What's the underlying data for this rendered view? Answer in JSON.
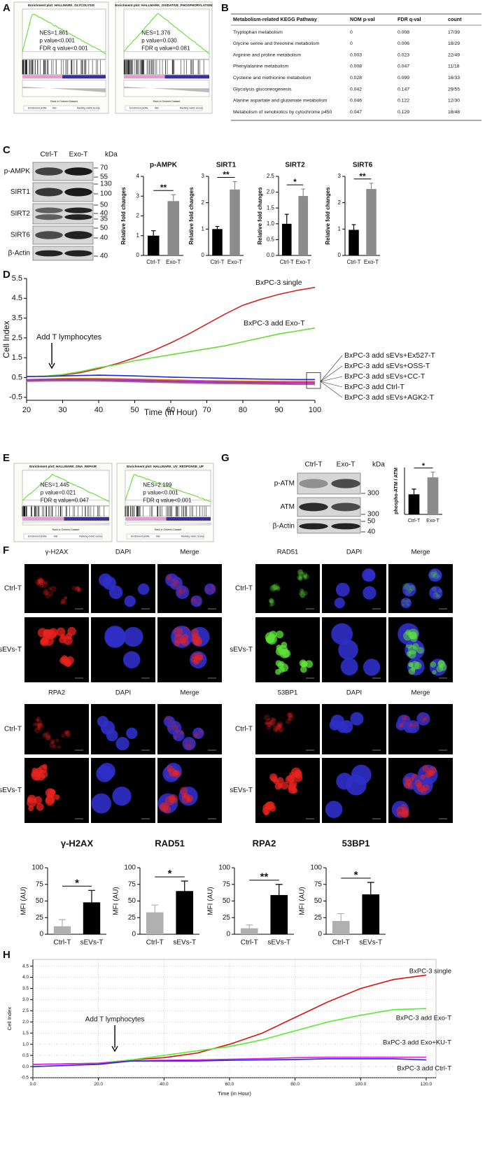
{
  "panel_labels": [
    "A",
    "B",
    "C",
    "D",
    "E",
    "F",
    "G",
    "H"
  ],
  "gsea": [
    {
      "title": "Enrichment plot: HALLMARK_GLYCOLYSIS",
      "stats": [
        "NES=1.861",
        "p value<0.001",
        "FDR q value<0.001"
      ]
    },
    {
      "title": "Enrichment plot: HALLMARK_OXIDATIVE_PHOSPHORYLATION",
      "stats": [
        "NES=1.376",
        "p value=0.030",
        "FDR q value=0.081"
      ]
    },
    {
      "title": "Enrichment plot: HALLMARK_DNA_REPAIR",
      "stats": [
        "NES=1.445",
        "p value=0.021",
        "FDR q value=0.047"
      ]
    },
    {
      "title": "Enrichment plot: HALLMARK_UV_RESPONSE_UP",
      "stats": [
        "NES=2.199",
        "p value<0.001",
        "FDR q value<0.001"
      ]
    }
  ],
  "gsea_legend": [
    "Enrichment profile",
    "Hits",
    "Ranking metric scores"
  ],
  "gsea_xlabel": "Rank in Ordered Dataset",
  "table": {
    "header": [
      "Metabolism-related KEGG Pathway",
      "NOM p-val",
      "FDR q-val",
      "count"
    ],
    "rows": [
      [
        "Tryptophan metabolism",
        "0",
        "0.008",
        "17/39"
      ],
      [
        "Glycine serine and threonine metabolism",
        "0",
        "0.006",
        "18/29"
      ],
      [
        "Arginine and proline metabolism",
        "0.003",
        "0.023",
        "22/49"
      ],
      [
        "Phenylalanine metabolism",
        "0.008",
        "0.047",
        "11/18"
      ],
      [
        "Cysteine and methionine metabolism",
        "0.028",
        "0.099",
        "16/33"
      ],
      [
        "Glycolysis gluconeogenesis",
        "0.042",
        "0.147",
        "29/55"
      ],
      [
        "Alanine aspartate and glutamate metabolism",
        "0.046",
        "0.122",
        "12/30"
      ],
      [
        "Metabolism of xenobiotics by cytochrome p450",
        "0.047",
        "0.129",
        "18/48"
      ]
    ]
  },
  "blot_c": {
    "lanes": [
      "Ctrl-T",
      "Exo-T"
    ],
    "unit": "kDa",
    "proteins": [
      "p-AMPK",
      "SIRT1",
      "SIRT2",
      "SIRT6",
      "β-Actin"
    ],
    "markers": [
      70,
      55,
      130,
      100,
      50,
      40,
      35,
      50,
      40,
      40
    ]
  },
  "blot_g": {
    "lanes": [
      "Ctrl-T",
      "Exo-T"
    ],
    "unit": "kDa",
    "proteins": [
      "p-ATM",
      "ATM",
      "β-Actin"
    ],
    "markers": [
      300,
      300,
      50,
      40
    ]
  },
  "microscopy": {
    "groups": [
      {
        "channels": [
          "γ-H2AX",
          "DAPI",
          "Merge"
        ],
        "color": "#e8231e"
      },
      {
        "channels": [
          "RAD51",
          "DAPI",
          "Merge"
        ],
        "color": "#5ee23a"
      },
      {
        "channels": [
          "RPA2",
          "DAPI",
          "Merge"
        ],
        "color": "#e8231e"
      },
      {
        "channels": [
          "53BP1",
          "DAPI",
          "Merge"
        ],
        "color": "#e8231e"
      }
    ],
    "rows": [
      "Ctrl-T",
      "sEVs-T"
    ]
  },
  "chart_data": [
    {
      "type": "bar",
      "title": "p-AMPK",
      "ylabel": "Relative fold changes",
      "categories": [
        "Ctrl-T",
        "Exo-T"
      ],
      "values": [
        1,
        2.75
      ],
      "errors": [
        0.25,
        0.32
      ],
      "colors": [
        "#000000",
        "#8c8c8c"
      ],
      "significance": "**",
      "ylim": [
        0,
        4
      ],
      "yticks": [
        0,
        1,
        2,
        3,
        4
      ]
    },
    {
      "type": "bar",
      "title": "SIRT1",
      "ylabel": "Relative fold changes",
      "categories": [
        "Ctrl-T",
        "Exo-T"
      ],
      "values": [
        1,
        2.5
      ],
      "errors": [
        0.1,
        0.3
      ],
      "colors": [
        "#000000",
        "#8c8c8c"
      ],
      "significance": "**",
      "ylim": [
        0,
        3
      ],
      "yticks": [
        0,
        1,
        2,
        3
      ]
    },
    {
      "type": "bar",
      "title": "SIRT2",
      "ylabel": "Relative fold changes",
      "categories": [
        "Ctrl-T",
        "Exo-T"
      ],
      "values": [
        1,
        1.88
      ],
      "errors": [
        0.3,
        0.22
      ],
      "colors": [
        "#000000",
        "#8c8c8c"
      ],
      "significance": "*",
      "ylim": [
        0,
        2.5
      ],
      "yticks": [
        {
          "value": 0,
          "label": "0.0"
        },
        0.5,
        {
          "value": 1,
          "label": "1.0"
        },
        1.5,
        {
          "value": 2,
          "label": "2.0"
        },
        2.5
      ]
    },
    {
      "type": "bar",
      "title": "SIRT6",
      "ylabel": "Relative fold changes",
      "categories": [
        "Ctrl-T",
        "Exo-T"
      ],
      "values": [
        0.97,
        2.52
      ],
      "errors": [
        0.2,
        0.22
      ],
      "colors": [
        "#000000",
        "#8c8c8c"
      ],
      "significance": "**",
      "ylim": [
        0,
        3
      ],
      "yticks": [
        0,
        1,
        2,
        3
      ]
    },
    {
      "type": "line",
      "ylabel": "Cell Index",
      "xlabel": "Time (in Hour)",
      "x": [
        20,
        25,
        30,
        35,
        40,
        45,
        50,
        55,
        60,
        65,
        70,
        75,
        80,
        85,
        90,
        95,
        100
      ],
      "xlim": [
        20,
        100
      ],
      "xticks": [
        20,
        30,
        40,
        50,
        60,
        70,
        80,
        90,
        100
      ],
      "ylim": [
        -0.65,
        5.5
      ],
      "yticks": [
        -0.5,
        0.5,
        1.5,
        2.5,
        3.5,
        4.5,
        5.5
      ],
      "grid": false,
      "annotation": {
        "text": "Add T lymphocytes",
        "x": 27
      },
      "series": [
        {
          "name": "BxPC-3 single",
          "color": "#d32222",
          "values": [
            0.55,
            0.57,
            0.62,
            0.75,
            0.95,
            1.2,
            1.5,
            1.85,
            2.25,
            2.7,
            3.2,
            3.7,
            4.15,
            4.45,
            4.7,
            4.9,
            5.05
          ]
        },
        {
          "name": "BxPC-3 add Exo-T",
          "color": "#66dd33",
          "values": [
            0.55,
            0.57,
            0.65,
            0.8,
            1.0,
            1.15,
            1.35,
            1.5,
            1.65,
            1.8,
            1.95,
            2.1,
            2.3,
            2.5,
            2.7,
            2.85,
            3.0
          ]
        },
        {
          "name": "BxPC-3 add sEVs+Ex527-T",
          "color": "#2424d8",
          "values": [
            0.55,
            0.56,
            0.58,
            0.6,
            0.62,
            0.6,
            0.58,
            0.55,
            0.52,
            0.5,
            0.48,
            0.46,
            0.44,
            0.42,
            0.41,
            0.4,
            0.4
          ]
        },
        {
          "name": "BxPC-3 add sEVs+OSS-T",
          "color": "#e07b00",
          "values": [
            0.4,
            0.42,
            0.45,
            0.45,
            0.45,
            0.44,
            0.42,
            0.4,
            0.38,
            0.36,
            0.34,
            0.33,
            0.32,
            0.31,
            0.3,
            0.3,
            0.3
          ]
        },
        {
          "name": "BxPC-3 add sEVs+CC-T",
          "color": "#d020d0",
          "values": [
            0.38,
            0.4,
            0.42,
            0.42,
            0.41,
            0.4,
            0.38,
            0.36,
            0.34,
            0.32,
            0.3,
            0.29,
            0.28,
            0.27,
            0.26,
            0.25,
            0.25
          ]
        },
        {
          "name": "BxPC-3 add Ctrl-T",
          "color": "#7a3fbf",
          "values": [
            0.35,
            0.37,
            0.38,
            0.38,
            0.37,
            0.35,
            0.33,
            0.31,
            0.29,
            0.27,
            0.25,
            0.24,
            0.23,
            0.22,
            0.21,
            0.2,
            0.2
          ]
        },
        {
          "name": "BxPC-3 add sEVs+AGK2-T",
          "color": "#b07070",
          "values": [
            0.3,
            0.32,
            0.33,
            0.33,
            0.32,
            0.3,
            0.28,
            0.26,
            0.24,
            0.22,
            0.2,
            0.19,
            0.18,
            0.17,
            0.16,
            0.15,
            0.15
          ]
        }
      ]
    },
    {
      "type": "bar",
      "ylabel": "phospho-ATM / ATM",
      "categories": [
        "Ctrl-T",
        "Exo-T"
      ],
      "values": [
        0.77,
        1.42
      ],
      "errors": [
        0.2,
        0.2
      ],
      "colors": [
        "#000000",
        "#8c8c8c"
      ],
      "significance": "*",
      "ylim": [
        0,
        1.8
      ]
    },
    {
      "type": "bar",
      "title": "γ-H2AX",
      "ylabel": "MFI (AU)",
      "categories": [
        "Ctrl-T",
        "sEVs-T"
      ],
      "values": [
        12,
        48
      ],
      "errors": [
        10,
        18
      ],
      "colors": [
        "#b0b0b0",
        "#000000"
      ],
      "significance": "*",
      "ylim": [
        0,
        100
      ],
      "yticks": [
        0,
        25,
        50,
        75,
        100
      ]
    },
    {
      "type": "bar",
      "title": "RAD51",
      "ylabel": "MFI (AU)",
      "categories": [
        "Ctrl-T",
        "sEVs-T"
      ],
      "values": [
        33,
        65
      ],
      "errors": [
        11,
        15
      ],
      "colors": [
        "#b0b0b0",
        "#000000"
      ],
      "significance": "*",
      "ylim": [
        0,
        100
      ],
      "yticks": [
        0,
        25,
        50,
        75,
        100
      ]
    },
    {
      "type": "bar",
      "title": "RPA2",
      "ylabel": "MFI (AU)",
      "categories": [
        "Ctrl-T",
        "sEVs-T"
      ],
      "values": [
        9,
        59
      ],
      "errors": [
        5,
        16
      ],
      "colors": [
        "#b0b0b0",
        "#000000"
      ],
      "significance": "**",
      "ylim": [
        0,
        100
      ],
      "yticks": [
        0,
        25,
        50,
        75,
        100
      ]
    },
    {
      "type": "bar",
      "title": "53BP1",
      "ylabel": "MFI (AU)",
      "categories": [
        "Ctrl-T",
        "sEVs-T"
      ],
      "values": [
        20,
        60
      ],
      "errors": [
        11,
        18
      ],
      "colors": [
        "#b0b0b0",
        "#000000"
      ],
      "significance": "*",
      "ylim": [
        0,
        100
      ],
      "yticks": [
        0,
        25,
        50,
        75,
        100
      ]
    },
    {
      "type": "line",
      "ylabel": "Cell Index",
      "xlabel": "Time (in Hour)",
      "x": [
        0,
        10,
        20,
        30,
        40,
        50,
        60,
        70,
        80,
        90,
        100,
        110,
        120
      ],
      "xlim": [
        0,
        123
      ],
      "xticks": [
        {
          "value": 0,
          "label": "0.0"
        },
        {
          "value": 20,
          "label": "20.0"
        },
        {
          "value": 40,
          "label": "40.0"
        },
        {
          "value": 60,
          "label": "60.0"
        },
        {
          "value": 80,
          "label": "80.0"
        },
        {
          "value": 100,
          "label": "100.0"
        },
        {
          "value": 120,
          "label": "120.0"
        }
      ],
      "ylim": [
        -0.5,
        4.8
      ],
      "yticks": [
        -0.5,
        {
          "value": 0,
          "label": "0.0"
        },
        0.5,
        {
          "value": 1,
          "label": "1.0"
        },
        1.5,
        {
          "value": 2,
          "label": "2.0"
        },
        2.5,
        {
          "value": 3,
          "label": "3.0"
        },
        3.5,
        {
          "value": 4,
          "label": "4.0"
        },
        4.5
      ],
      "grid": true,
      "annotation": {
        "text": "Add T lymphocytes",
        "x": 25
      },
      "series": [
        {
          "name": "BxPC-3 single",
          "color": "#dd1111",
          "values": [
            0.1,
            0.12,
            0.15,
            0.3,
            0.4,
            0.6,
            1.0,
            1.5,
            2.2,
            2.9,
            3.5,
            3.9,
            4.1
          ]
        },
        {
          "name": "BxPC-3 add Exo-T",
          "color": "#55ee33",
          "values": [
            0.1,
            0.12,
            0.15,
            0.3,
            0.5,
            0.7,
            0.9,
            1.2,
            1.6,
            2.0,
            2.3,
            2.55,
            2.6
          ]
        },
        {
          "name": "BxPC-3 add Exo+KU-T",
          "color": "#dd22dd",
          "values": [
            0.1,
            0.12,
            0.15,
            0.25,
            0.28,
            0.3,
            0.33,
            0.36,
            0.4,
            0.42,
            0.42,
            0.42,
            0.42
          ]
        },
        {
          "name": "BxPC-3 add Ctrl-T",
          "color": "#2222ee",
          "values": [
            0.0,
            0.05,
            0.1,
            0.25,
            0.25,
            0.25,
            0.28,
            0.3,
            0.32,
            0.35,
            0.35,
            0.35,
            0.3
          ]
        }
      ]
    }
  ]
}
